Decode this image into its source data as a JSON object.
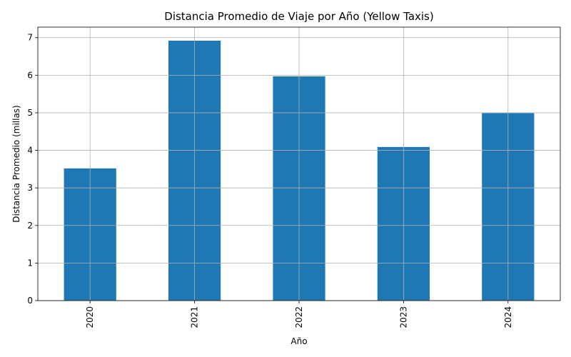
{
  "chart_data": {
    "type": "bar",
    "title": "Distancia Promedio de Viaje por Año (Yellow Taxis)",
    "xlabel": "Año",
    "ylabel": "Distancia Promedio (millas)",
    "categories": [
      "2020",
      "2021",
      "2022",
      "2023",
      "2024"
    ],
    "values": [
      3.52,
      6.92,
      5.97,
      4.09,
      4.99
    ],
    "ylim": [
      0,
      7.28
    ],
    "yticks": [
      "0",
      "1",
      "2",
      "3",
      "4",
      "5",
      "6",
      "7"
    ],
    "grid": true,
    "bar_color": "#1f77b4",
    "x_tick_rotation": "vertical"
  }
}
